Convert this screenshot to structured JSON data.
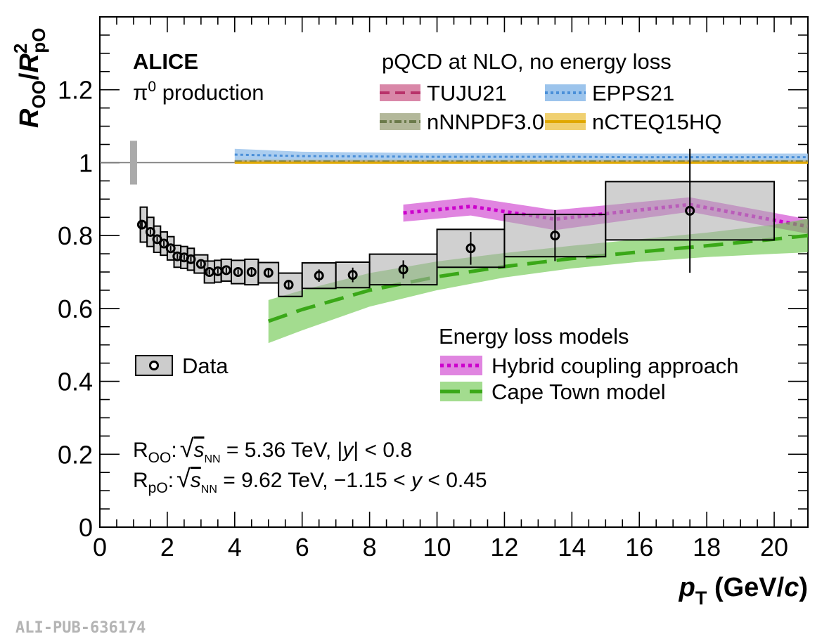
{
  "chart_data": {
    "type": "scatter",
    "xlabel": {
      "var": "p",
      "sub": "T",
      "unit_open": " (GeV/",
      "unit_var": "c",
      "unit_close": ")"
    },
    "ylabel": {
      "num": "R",
      "num_sub": "OO",
      "sep": "/",
      "den": "R",
      "den_sup": "2",
      "den_sub": "pO"
    },
    "xlim": [
      0,
      21
    ],
    "ylim": [
      0,
      1.4
    ],
    "x_ticks": [
      "0",
      "2",
      "4",
      "6",
      "8",
      "10",
      "12",
      "14",
      "16",
      "18",
      "20"
    ],
    "y_ticks": [
      "0",
      "0.2",
      "0.4",
      "0.6",
      "0.8",
      "1",
      "1.2"
    ],
    "experiment": "ALICE",
    "process": {
      "sym": "π",
      "sup": "0",
      "rest": " production"
    },
    "reference_line": 1.0,
    "normalization_uncertainty": {
      "x": 1.0,
      "low": 0.94,
      "high": 1.06
    },
    "data": {
      "name": "Data",
      "points": [
        {
          "x": 1.25,
          "y": 0.83,
          "stat": 0.008,
          "xlo": 1.2,
          "xhi": 1.4,
          "syst": 0.048
        },
        {
          "x": 1.5,
          "y": 0.81,
          "stat": 0.007,
          "xlo": 1.4,
          "xhi": 1.6,
          "syst": 0.04
        },
        {
          "x": 1.7,
          "y": 0.79,
          "stat": 0.007,
          "xlo": 1.6,
          "xhi": 1.8,
          "syst": 0.036
        },
        {
          "x": 1.9,
          "y": 0.778,
          "stat": 0.007,
          "xlo": 1.8,
          "xhi": 2.0,
          "syst": 0.032
        },
        {
          "x": 2.1,
          "y": 0.765,
          "stat": 0.007,
          "xlo": 2.0,
          "xhi": 2.2,
          "syst": 0.032
        },
        {
          "x": 2.3,
          "y": 0.743,
          "stat": 0.007,
          "xlo": 2.2,
          "xhi": 2.4,
          "syst": 0.03
        },
        {
          "x": 2.5,
          "y": 0.74,
          "stat": 0.007,
          "xlo": 2.4,
          "xhi": 2.6,
          "syst": 0.03
        },
        {
          "x": 2.7,
          "y": 0.735,
          "stat": 0.007,
          "xlo": 2.6,
          "xhi": 2.8,
          "syst": 0.03
        },
        {
          "x": 3.0,
          "y": 0.722,
          "stat": 0.007,
          "xlo": 2.8,
          "xhi": 3.2,
          "syst": 0.025
        },
        {
          "x": 3.25,
          "y": 0.7,
          "stat": 0.007,
          "xlo": 3.1,
          "xhi": 3.4,
          "syst": 0.03
        },
        {
          "x": 3.5,
          "y": 0.702,
          "stat": 0.007,
          "xlo": 3.4,
          "xhi": 3.6,
          "syst": 0.03
        },
        {
          "x": 3.75,
          "y": 0.705,
          "stat": 0.007,
          "xlo": 3.6,
          "xhi": 3.9,
          "syst": 0.03
        },
        {
          "x": 4.1,
          "y": 0.7,
          "stat": 0.007,
          "xlo": 3.9,
          "xhi": 4.3,
          "syst": 0.032
        },
        {
          "x": 4.5,
          "y": 0.7,
          "stat": 0.008,
          "xlo": 4.3,
          "xhi": 4.7,
          "syst": 0.035
        },
        {
          "x": 5.0,
          "y": 0.698,
          "stat": 0.01,
          "xlo": 4.7,
          "xhi": 5.3,
          "syst": 0.028
        },
        {
          "x": 5.6,
          "y": 0.665,
          "stat": 0.012,
          "xlo": 5.3,
          "xhi": 6.0,
          "syst": 0.032
        },
        {
          "x": 6.5,
          "y": 0.69,
          "stat": 0.017,
          "xlo": 6.0,
          "xhi": 7.0,
          "syst": 0.035
        },
        {
          "x": 7.5,
          "y": 0.692,
          "stat": 0.02,
          "xlo": 7.0,
          "xhi": 8.0,
          "syst": 0.035
        },
        {
          "x": 9.0,
          "y": 0.707,
          "stat": 0.025,
          "xlo": 8.0,
          "xhi": 10.0,
          "syst": 0.042
        },
        {
          "x": 11.0,
          "y": 0.765,
          "stat": 0.045,
          "xlo": 10.0,
          "xhi": 12.0,
          "syst": 0.052
        },
        {
          "x": 13.5,
          "y": 0.8,
          "stat": 0.07,
          "xlo": 12.0,
          "xhi": 15.0,
          "syst": 0.058
        },
        {
          "x": 17.5,
          "y": 0.868,
          "stat": 0.17,
          "xlo": 15.0,
          "xhi": 20.0,
          "syst": 0.08
        }
      ]
    },
    "pqcd_header": "pQCD at NLO, no energy loss",
    "pqcd_models": [
      {
        "name": "TUJU21",
        "line_color": "#b8336a",
        "band_color": "#d987a8",
        "dash": "14,8",
        "x": [
          4,
          6,
          8,
          10,
          12,
          14,
          16,
          18,
          20,
          21
        ],
        "y": [
          1.003,
          1.003,
          1.003,
          1.003,
          1.003,
          1.003,
          1.003,
          1.003,
          1.003,
          1.003
        ],
        "band_lo": [
          0.999,
          0.999,
          0.999,
          0.999,
          0.999,
          0.999,
          0.999,
          0.999,
          0.999,
          0.999
        ],
        "band_hi": [
          1.007,
          1.007,
          1.007,
          1.007,
          1.007,
          1.007,
          1.007,
          1.007,
          1.007,
          1.007
        ]
      },
      {
        "name": "EPPS21",
        "line_color": "#4a8fd8",
        "band_color": "#9cc4ec",
        "dash": "4,4",
        "x": [
          4,
          6,
          8,
          10,
          12,
          14,
          16,
          18,
          20,
          21
        ],
        "y": [
          1.022,
          1.018,
          1.017,
          1.016,
          1.016,
          1.016,
          1.015,
          1.015,
          1.015,
          1.015
        ],
        "band_lo": [
          1.006,
          1.006,
          1.006,
          1.006,
          1.006,
          1.006,
          1.006,
          1.006,
          1.006,
          1.006
        ],
        "band_hi": [
          1.038,
          1.03,
          1.028,
          1.026,
          1.026,
          1.026,
          1.025,
          1.025,
          1.025,
          1.025
        ]
      },
      {
        "name": "nNNPDF3.0",
        "line_color": "#6b7a4a",
        "band_color": "#b3b89a",
        "dash": "10,4,3,4",
        "x": [
          4,
          6,
          8,
          10,
          12,
          14,
          16,
          18,
          20,
          21
        ],
        "y": [
          1.003,
          1.003,
          1.003,
          1.003,
          1.003,
          1.003,
          1.003,
          1.003,
          1.003,
          1.003
        ],
        "band_lo": [
          0.999,
          0.999,
          0.999,
          0.999,
          0.999,
          0.999,
          0.999,
          0.999,
          0.999,
          0.999
        ],
        "band_hi": [
          1.008,
          1.008,
          1.008,
          1.008,
          1.008,
          1.008,
          1.008,
          1.008,
          1.008,
          1.008
        ]
      },
      {
        "name": "nCTEQ15HQ",
        "line_color": "#e0a800",
        "band_color": "#f0d070",
        "dash": "",
        "x": [
          4,
          6,
          8,
          10,
          12,
          14,
          16,
          18,
          20,
          21
        ],
        "y": [
          1.0,
          1.0,
          1.0,
          1.0,
          1.0,
          1.0,
          1.0,
          1.0,
          1.0,
          1.0
        ],
        "band_lo": [
          0.997,
          0.997,
          0.997,
          0.997,
          0.997,
          0.997,
          0.997,
          0.997,
          0.997,
          0.997
        ],
        "band_hi": [
          1.003,
          1.003,
          1.003,
          1.003,
          1.003,
          1.003,
          1.003,
          1.003,
          1.003,
          1.003
        ]
      }
    ],
    "eloss_header": "Energy loss models",
    "eloss_models": [
      {
        "name": "Hybrid coupling approach",
        "line_color": "#cc00cc",
        "band_color": "#cc33cc",
        "band_opacity": 0.6,
        "dash": "5,5",
        "x": [
          9,
          11,
          13.5,
          17.5,
          21
        ],
        "y": [
          0.862,
          0.88,
          0.845,
          0.885,
          0.825
        ],
        "band_lo": [
          0.838,
          0.855,
          0.815,
          0.865,
          0.805
        ],
        "band_hi": [
          0.885,
          0.905,
          0.87,
          0.905,
          0.845
        ]
      },
      {
        "name": "Cape Town model",
        "line_color": "#3aa818",
        "band_color": "#66c444",
        "band_opacity": 0.6,
        "dash": "28,14",
        "x": [
          5,
          6,
          8,
          10,
          12,
          14,
          16,
          18,
          20,
          21
        ],
        "y": [
          0.565,
          0.597,
          0.65,
          0.687,
          0.715,
          0.737,
          0.755,
          0.772,
          0.79,
          0.8
        ],
        "band_lo": [
          0.505,
          0.54,
          0.605,
          0.65,
          0.685,
          0.71,
          0.728,
          0.741,
          0.75,
          0.754
        ],
        "band_hi": [
          0.623,
          0.65,
          0.697,
          0.729,
          0.752,
          0.772,
          0.79,
          0.808,
          0.83,
          0.846
        ]
      }
    ],
    "energies": [
      {
        "pre": "R",
        "pre_sub": "OO",
        "colon": ":",
        "s": "s",
        "s_sub": "NN",
        "eq": " = 5.36 TeV, |",
        "yvar": "y",
        "post": "| < 0.8"
      },
      {
        "pre": "R",
        "pre_sub": "pO",
        "colon": ":",
        "s": "s",
        "s_sub": "NN",
        "eq": " = 9.62 TeV, −1.15 < ",
        "yvar": "y",
        "post": " < 0.45"
      }
    ],
    "grid": false,
    "legend_placement": "top-right and center-left"
  },
  "publication_id": "ALI-PUB-636174"
}
